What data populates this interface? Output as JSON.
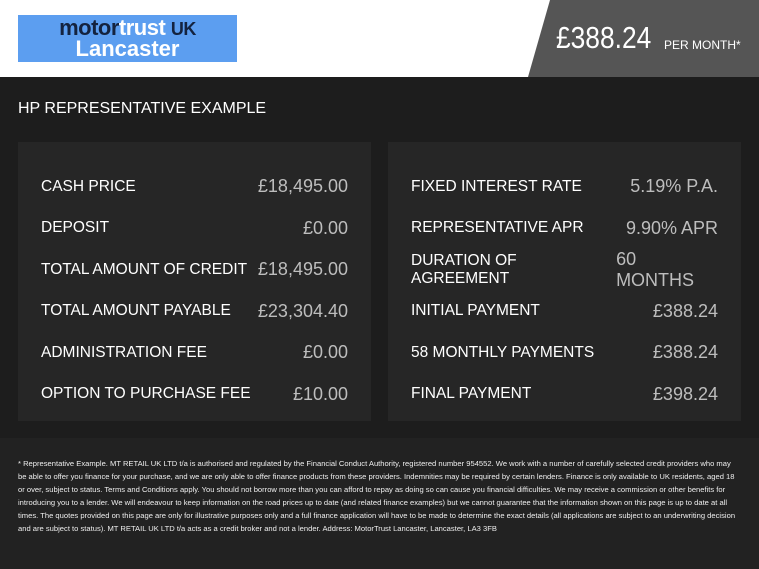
{
  "header": {
    "logo": {
      "motor": "motor",
      "trust": "trust",
      "uk": "UK",
      "location": "Lancaster"
    },
    "price": "£388.24",
    "per_month": "PER MONTH*"
  },
  "title": "HP REPRESENTATIVE EXAMPLE",
  "left": [
    {
      "label": "CASH PRICE",
      "value": "£18,495.00"
    },
    {
      "label": "DEPOSIT",
      "value": "£0.00"
    },
    {
      "label": "TOTAL AMOUNT OF CREDIT",
      "value": "£18,495.00"
    },
    {
      "label": "TOTAL AMOUNT PAYABLE",
      "value": "£23,304.40"
    },
    {
      "label": "ADMINISTRATION FEE",
      "value": "£0.00"
    },
    {
      "label": "OPTION TO PURCHASE FEE",
      "value": "£10.00"
    }
  ],
  "right": [
    {
      "label": "FIXED INTEREST RATE",
      "value": "5.19% P.A."
    },
    {
      "label": "REPRESENTATIVE APR",
      "value": "9.90% APR"
    },
    {
      "label": "DURATION OF AGREEMENT",
      "value": "60 MONTHS"
    },
    {
      "label": "INITIAL PAYMENT",
      "value": "£388.24"
    },
    {
      "label": "58 MONTHLY PAYMENTS",
      "value": "£388.24"
    },
    {
      "label": "FINAL PAYMENT",
      "value": "£398.24"
    }
  ],
  "footer": "* Representative Example. MT RETAIL UK LTD t/a is authorised and regulated by the Financial Conduct Authority, registered number 954552. We work with a number of carefully selected credit providers who may be able to offer you finance for your purchase, and we are only able to offer finance products from these providers. Indemnities may be required by certain lenders. Finance is only available to UK residents, aged 18 or over, subject to status. Terms and Conditions apply. You should not borrow more than you can afford to repay as doing so can cause you financial difficulties. We may receive a commission or other benefits for introducing you to a lender. We will endeavour to keep information on the road prices up to date (and related finance examples) but we cannot guarantee that the information shown on this page is up to date at all times. The quotes provided on this page are only for illustrative purposes only and a full finance application will have to be made to determine the exact details (all applications are subject to an underwriting decision and are subject to status). MT RETAIL UK LTD t/a acts as a credit broker and not a lender. Address: MotorTrust Lancaster, Lancaster, LA3 3FB"
}
